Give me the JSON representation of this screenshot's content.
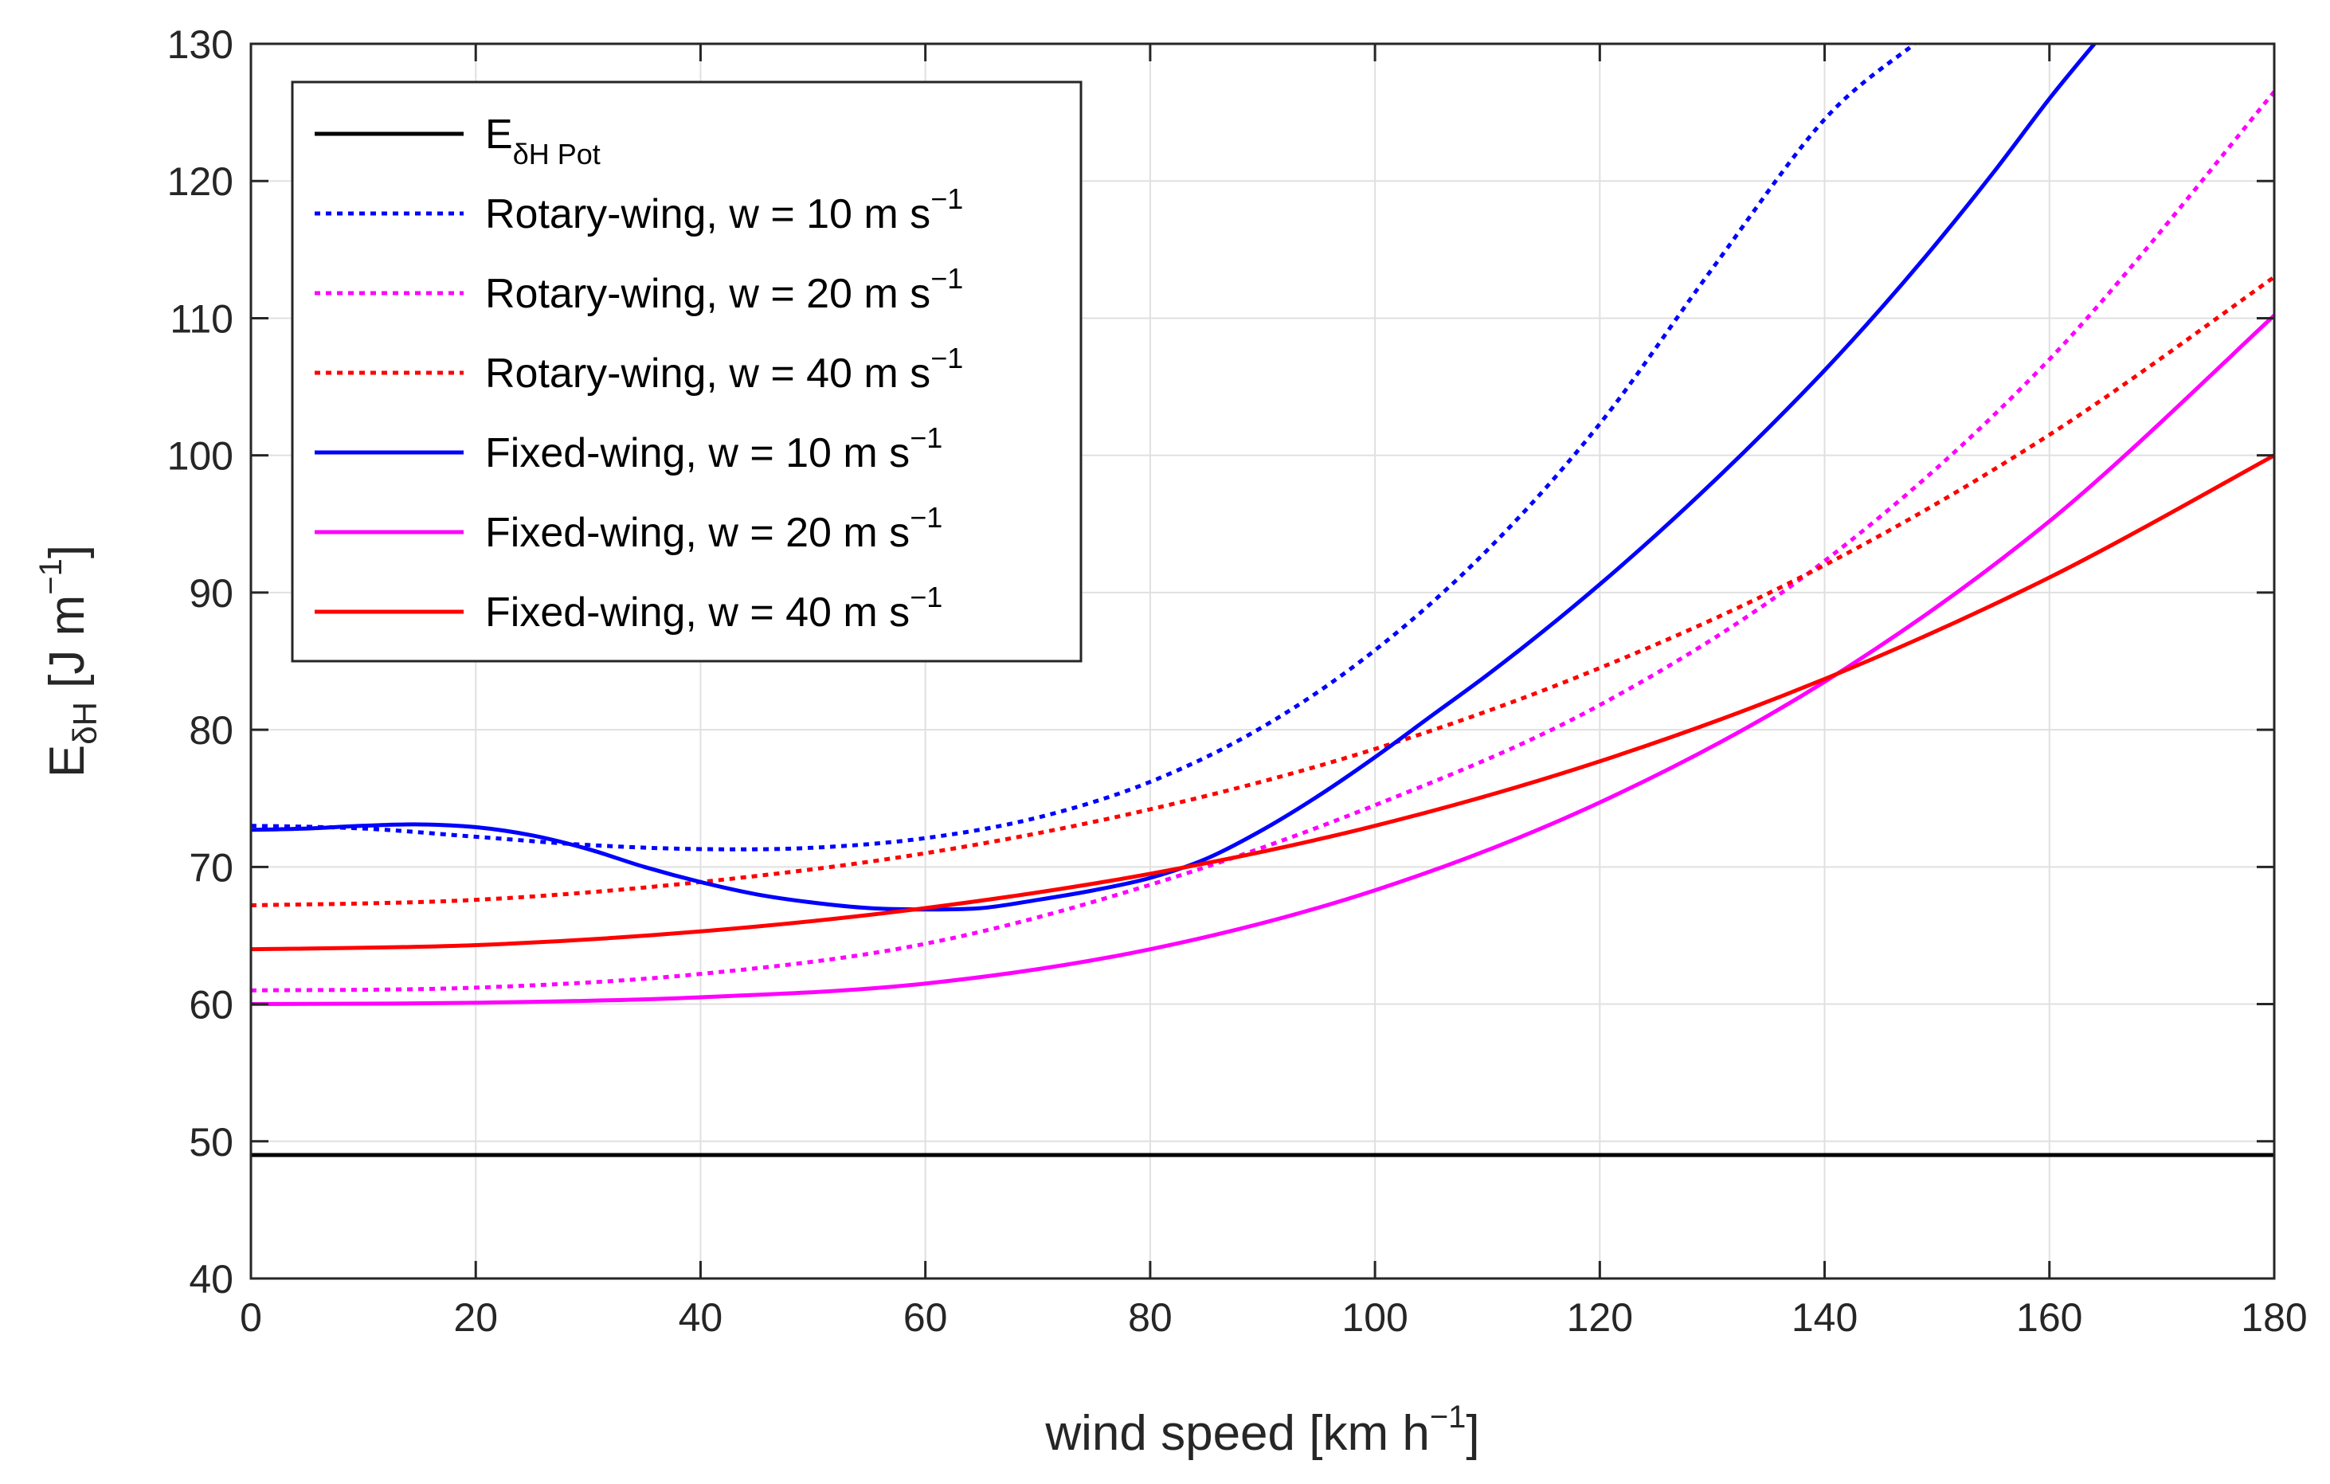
{
  "chart_data": {
    "type": "line",
    "xlabel": {
      "text": "wind speed [km h",
      "sup": "−1",
      "suffix": "]"
    },
    "ylabel": {
      "main": "E",
      "sub": "δH",
      "mid": " [J m",
      "sup": "−1",
      "suffix": "]"
    },
    "xlim": [
      0,
      180
    ],
    "ylim": [
      40,
      130
    ],
    "xticks": [
      0,
      20,
      40,
      60,
      80,
      100,
      120,
      140,
      160,
      180
    ],
    "yticks": [
      40,
      50,
      60,
      70,
      80,
      90,
      100,
      110,
      120,
      130
    ],
    "grid": true,
    "legend_position": "top-left",
    "series": [
      {
        "name": "E",
        "name_sub": "δH Pot",
        "name_sup": "",
        "color": "#000000",
        "style": "solid",
        "x": [
          0,
          180
        ],
        "y": [
          49,
          49
        ]
      },
      {
        "name": "Rotary-wing, w = 10 m s",
        "name_sub": "",
        "name_sup": "−1",
        "color": "#0000ff",
        "style": "dotted",
        "x": [
          0,
          10,
          20,
          30,
          40,
          50,
          60,
          70,
          80,
          90,
          100,
          110,
          120,
          130,
          140,
          148
        ],
        "y": [
          73,
          72.8,
          72.2,
          71.6,
          71.3,
          71.4,
          72.1,
          73.6,
          76.2,
          80.2,
          85.8,
          93.1,
          102.3,
          113.6,
          124.5,
          130
        ]
      },
      {
        "name": "Rotary-wing, w = 20 m s",
        "name_sub": "",
        "name_sup": "−1",
        "color": "#ff00ff",
        "style": "dotted",
        "x": [
          0,
          20,
          40,
          60,
          80,
          100,
          120,
          140,
          160,
          180
        ],
        "y": [
          61,
          61.2,
          62.2,
          64.4,
          68.7,
          74.5,
          81.8,
          92.3,
          107.0,
          126.5
        ]
      },
      {
        "name": "Rotary-wing, w = 40 m s",
        "name_sub": "",
        "name_sup": "−1",
        "color": "#ff0000",
        "style": "dotted",
        "x": [
          0,
          20,
          40,
          60,
          80,
          100,
          120,
          140,
          160,
          180
        ],
        "y": [
          67.2,
          67.6,
          68.9,
          71.0,
          74.2,
          78.6,
          84.5,
          92.0,
          101.5,
          113.0
        ]
      },
      {
        "name": "Fixed-wing, w = 10 m s",
        "name_sub": "",
        "name_sup": "−1",
        "color": "#0000ff",
        "style": "solid",
        "x": [
          0,
          5,
          10,
          15,
          20,
          25,
          30,
          35,
          40,
          45,
          50,
          55,
          60,
          65,
          70,
          75,
          80,
          85,
          90,
          95,
          100,
          105,
          110,
          115,
          120,
          125,
          130,
          135,
          140,
          145,
          150,
          155,
          160,
          164
        ],
        "y": [
          72.7,
          72.8,
          73.0,
          73.1,
          72.9,
          72.3,
          71.3,
          70.0,
          68.9,
          68.0,
          67.4,
          67.0,
          66.9,
          67.0,
          67.6,
          68.3,
          69.2,
          70.6,
          72.7,
          75.2,
          78.0,
          81.0,
          84.0,
          87.2,
          90.6,
          94.2,
          98.0,
          102.0,
          106.2,
          110.7,
          115.5,
          120.6,
          126.0,
          130
        ]
      },
      {
        "name": "Fixed-wing, w = 20 m s",
        "name_sub": "",
        "name_sup": "−1",
        "color": "#ff00ff",
        "style": "solid",
        "x": [
          0,
          20,
          40,
          60,
          80,
          100,
          120,
          140,
          160,
          180
        ],
        "y": [
          60.0,
          60.1,
          60.5,
          61.5,
          64.0,
          68.3,
          74.7,
          83.5,
          95.2,
          110.2
        ]
      },
      {
        "name": "Fixed-wing, w = 40 m s",
        "name_sub": "",
        "name_sup": "−1",
        "color": "#ff0000",
        "style": "solid",
        "x": [
          0,
          20,
          40,
          60,
          80,
          100,
          120,
          140,
          160,
          180
        ],
        "y": [
          64.0,
          64.3,
          65.3,
          67.0,
          69.5,
          73.0,
          77.7,
          83.7,
          91.1,
          100.0
        ]
      }
    ]
  }
}
